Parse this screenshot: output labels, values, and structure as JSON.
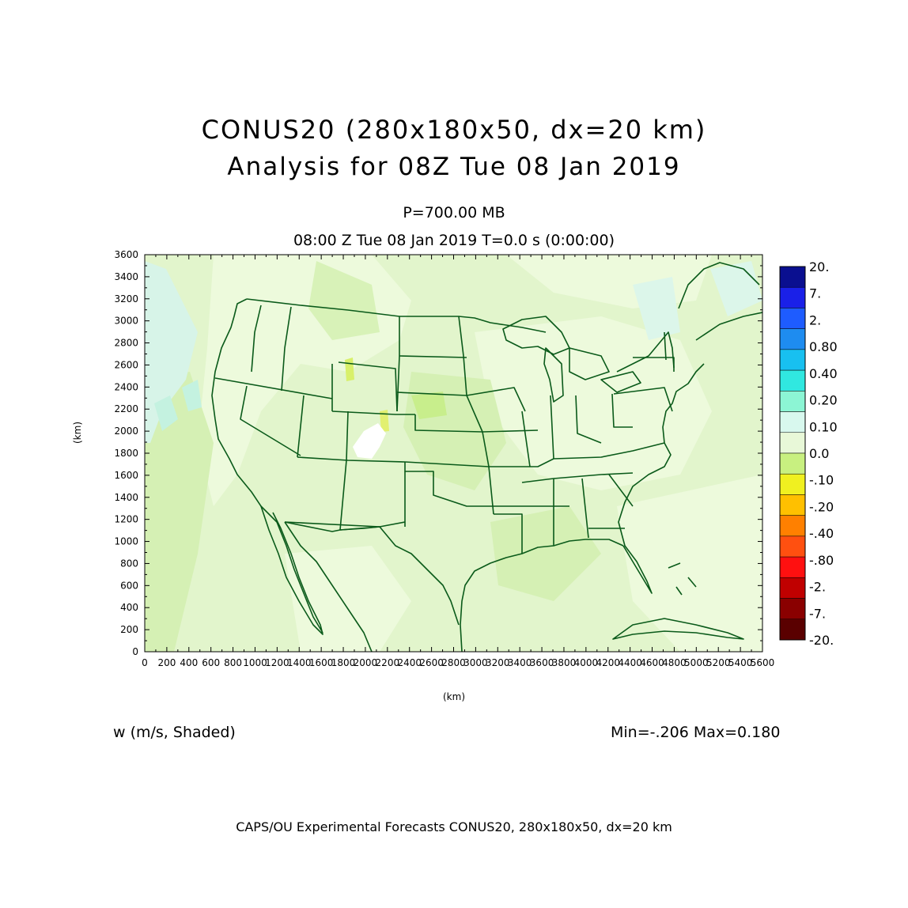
{
  "title": {
    "line1": "CONUS20 (280x180x50, dx=20 km)",
    "line2": "Analysis for 08Z Tue 08 Jan 2019"
  },
  "level_label": "P=700.00 MB",
  "time_label": "08:00 Z Tue 08 Jan 2019    T=0.0 s (0:00:00)",
  "axes": {
    "x_label": "(km)",
    "y_label": "(km)",
    "x_ticks": [
      "0",
      "200",
      "400",
      "600",
      "800",
      "1000",
      "1200",
      "1400",
      "1600",
      "1800",
      "2000",
      "2200",
      "2400",
      "2600",
      "2800",
      "3000",
      "3200",
      "3400",
      "3600",
      "3800",
      "4000",
      "4200",
      "4400",
      "4600",
      "4800",
      "5000",
      "5200",
      "5400",
      "5600"
    ],
    "y_ticks": [
      "0",
      "200",
      "400",
      "600",
      "800",
      "1000",
      "1200",
      "1400",
      "1600",
      "1800",
      "2000",
      "2200",
      "2400",
      "2600",
      "2800",
      "3000",
      "3200",
      "3400",
      "3600"
    ]
  },
  "colorbar": {
    "labels": [
      "20.",
      "7.",
      "2.",
      "0.80",
      "0.40",
      "0.20",
      "0.10",
      "0.0",
      "-.10",
      "-.20",
      "-.40",
      "-.80",
      "-2.",
      "-7.",
      "-20."
    ],
    "colors": [
      "#0a0f90",
      "#1a20e8",
      "#1e5cff",
      "#1e8cf0",
      "#18c0f0",
      "#30e8e0",
      "#8cf5d4",
      "#d8f8ee",
      "#e8f8d8",
      "#c8f080",
      "#f0f020",
      "#ffc000",
      "#ff8000",
      "#ff5010",
      "#ff1010",
      "#c00000",
      "#8a0000",
      "#5a0000"
    ]
  },
  "field_colors": {
    "background": "#e2f5cc",
    "light": "#edfadc",
    "medium": "#d2efb0",
    "positive": "#d0f6ea",
    "negative": "#c8ee88",
    "missing": "#ffffff",
    "map_lines": "#0a5a1a"
  },
  "variable_label": "w (m/s, Shaded)",
  "minmax_label": "Min=-.206  Max=0.180",
  "footer": "CAPS/OU Experimental Forecasts  CONUS20, 280x180x50, dx=20 km"
}
